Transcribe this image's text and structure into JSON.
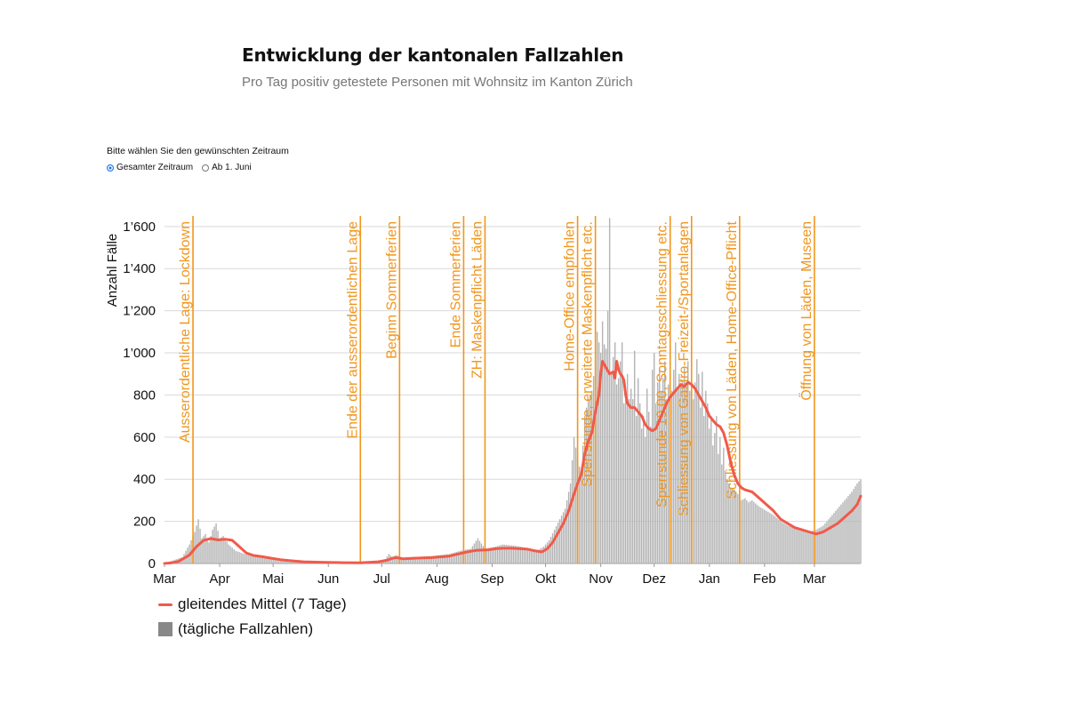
{
  "header": {
    "title": "Entwicklung der kantonalen Fallzahlen",
    "subtitle": "Pro Tag positiv getestete Personen mit Wohnsitz im Kanton Zürich"
  },
  "period_selector": {
    "label": "Bitte wählen Sie den gewünschten Zeitraum",
    "options": [
      {
        "label": "Gesamter Zeitraum",
        "selected": true
      },
      {
        "label": "Ab 1. Juni",
        "selected": false
      }
    ]
  },
  "legend": {
    "line_label": "gleitendes Mittel (7 Tage)",
    "bar_label": "(tägliche Fallzahlen)"
  },
  "colors": {
    "line": "#f05a4a",
    "bars": "#b3b3b3",
    "events": "#f0961e",
    "grid": "#d9d9d9"
  },
  "chart_data": {
    "type": "bar",
    "title": "Entwicklung der kantonalen Fallzahlen",
    "xlabel": "",
    "ylabel": "Anzahl Fälle",
    "ylim": [
      0,
      1650
    ],
    "yticks": [
      0,
      200,
      400,
      600,
      800,
      1000,
      1200,
      1400,
      1600
    ],
    "ytick_labels": [
      "0",
      "200",
      "400",
      "600",
      "800",
      "1’000",
      "1’200",
      "1’400",
      "1’600"
    ],
    "xlim": [
      0,
      391
    ],
    "xticks": [
      {
        "day": 0,
        "label": "Mar"
      },
      {
        "day": 31,
        "label": "Apr"
      },
      {
        "day": 61,
        "label": "Mai"
      },
      {
        "day": 92,
        "label": "Jun"
      },
      {
        "day": 122,
        "label": "Jul"
      },
      {
        "day": 153,
        "label": "Aug"
      },
      {
        "day": 184,
        "label": "Sep"
      },
      {
        "day": 214,
        "label": "Okt"
      },
      {
        "day": 245,
        "label": "Nov"
      },
      {
        "day": 275,
        "label": "Dez"
      },
      {
        "day": 306,
        "label": "Jan"
      },
      {
        "day": 337,
        "label": "Feb"
      },
      {
        "day": 365,
        "label": "Mar"
      }
    ],
    "start_date": "2020-03-01",
    "series": [
      {
        "name": "gleitendes Mittel (7 Tage)",
        "kind": "line",
        "points": [
          [
            0,
            0
          ],
          [
            4,
            3
          ],
          [
            8,
            10
          ],
          [
            12,
            30
          ],
          [
            14,
            40
          ],
          [
            18,
            80
          ],
          [
            22,
            110
          ],
          [
            26,
            118
          ],
          [
            30,
            112
          ],
          [
            34,
            115
          ],
          [
            38,
            110
          ],
          [
            42,
            80
          ],
          [
            46,
            50
          ],
          [
            50,
            38
          ],
          [
            55,
            32
          ],
          [
            60,
            25
          ],
          [
            65,
            18
          ],
          [
            70,
            14
          ],
          [
            78,
            8
          ],
          [
            90,
            5
          ],
          [
            100,
            4
          ],
          [
            110,
            3
          ],
          [
            115,
            5
          ],
          [
            120,
            8
          ],
          [
            125,
            15
          ],
          [
            128,
            25
          ],
          [
            130,
            28
          ],
          [
            134,
            22
          ],
          [
            140,
            25
          ],
          [
            150,
            28
          ],
          [
            160,
            35
          ],
          [
            165,
            45
          ],
          [
            170,
            55
          ],
          [
            175,
            62
          ],
          [
            182,
            65
          ],
          [
            186,
            70
          ],
          [
            190,
            72
          ],
          [
            195,
            72
          ],
          [
            200,
            70
          ],
          [
            204,
            68
          ],
          [
            208,
            60
          ],
          [
            212,
            55
          ],
          [
            215,
            70
          ],
          [
            218,
            100
          ],
          [
            221,
            145
          ],
          [
            224,
            190
          ],
          [
            227,
            250
          ],
          [
            230,
            330
          ],
          [
            232,
            380
          ],
          [
            234,
            420
          ],
          [
            236,
            520
          ],
          [
            238,
            580
          ],
          [
            240,
            620
          ],
          [
            242,
            720
          ],
          [
            244,
            800
          ],
          [
            245,
            900
          ],
          [
            246,
            960
          ],
          [
            248,
            930
          ],
          [
            250,
            900
          ],
          [
            252,
            910
          ],
          [
            253,
            880
          ],
          [
            254,
            960
          ],
          [
            255,
            920
          ],
          [
            256,
            900
          ],
          [
            257,
            890
          ],
          [
            258,
            870
          ],
          [
            259,
            800
          ],
          [
            260,
            760
          ],
          [
            262,
            740
          ],
          [
            264,
            740
          ],
          [
            266,
            720
          ],
          [
            268,
            700
          ],
          [
            270,
            660
          ],
          [
            272,
            640
          ],
          [
            274,
            630
          ],
          [
            276,
            640
          ],
          [
            278,
            680
          ],
          [
            280,
            720
          ],
          [
            282,
            760
          ],
          [
            284,
            790
          ],
          [
            286,
            810
          ],
          [
            288,
            830
          ],
          [
            290,
            850
          ],
          [
            292,
            840
          ],
          [
            294,
            860
          ],
          [
            296,
            850
          ],
          [
            298,
            830
          ],
          [
            300,
            800
          ],
          [
            302,
            770
          ],
          [
            304,
            740
          ],
          [
            306,
            700
          ],
          [
            308,
            680
          ],
          [
            310,
            660
          ],
          [
            312,
            650
          ],
          [
            314,
            620
          ],
          [
            316,
            560
          ],
          [
            318,
            480
          ],
          [
            320,
            420
          ],
          [
            322,
            380
          ],
          [
            324,
            360
          ],
          [
            326,
            350
          ],
          [
            330,
            340
          ],
          [
            334,
            310
          ],
          [
            338,
            280
          ],
          [
            342,
            250
          ],
          [
            346,
            210
          ],
          [
            350,
            190
          ],
          [
            354,
            170
          ],
          [
            358,
            160
          ],
          [
            362,
            150
          ],
          [
            366,
            140
          ],
          [
            370,
            150
          ],
          [
            374,
            170
          ],
          [
            378,
            190
          ],
          [
            382,
            220
          ],
          [
            386,
            250
          ],
          [
            389,
            280
          ],
          [
            391,
            320
          ]
        ]
      },
      {
        "name": "(tägliche Fallzahlen)",
        "kind": "bars",
        "note": "daily values, estimated",
        "points": [
          [
            0,
            0
          ],
          [
            10,
            30
          ],
          [
            14,
            90
          ],
          [
            17,
            150
          ],
          [
            19,
            210
          ],
          [
            21,
            120
          ],
          [
            23,
            140
          ],
          [
            25,
            100
          ],
          [
            27,
            160
          ],
          [
            29,
            190
          ],
          [
            31,
            120
          ],
          [
            33,
            130
          ],
          [
            36,
            90
          ],
          [
            40,
            60
          ],
          [
            45,
            45
          ],
          [
            50,
            35
          ],
          [
            55,
            28
          ],
          [
            60,
            22
          ],
          [
            65,
            16
          ],
          [
            70,
            12
          ],
          [
            80,
            8
          ],
          [
            90,
            5
          ],
          [
            100,
            4
          ],
          [
            110,
            4
          ],
          [
            118,
            8
          ],
          [
            124,
            20
          ],
          [
            126,
            45
          ],
          [
            128,
            30
          ],
          [
            130,
            40
          ],
          [
            135,
            25
          ],
          [
            140,
            30
          ],
          [
            150,
            35
          ],
          [
            160,
            45
          ],
          [
            166,
            60
          ],
          [
            172,
            70
          ],
          [
            176,
            120
          ],
          [
            180,
            70
          ],
          [
            186,
            80
          ],
          [
            190,
            90
          ],
          [
            196,
            85
          ],
          [
            200,
            80
          ],
          [
            205,
            70
          ],
          [
            210,
            65
          ],
          [
            213,
            80
          ],
          [
            216,
            110
          ],
          [
            219,
            160
          ],
          [
            222,
            210
          ],
          [
            225,
            260
          ],
          [
            228,
            380
          ],
          [
            230,
            600
          ],
          [
            232,
            500
          ],
          [
            234,
            420
          ],
          [
            236,
            700
          ],
          [
            238,
            780
          ],
          [
            240,
            820
          ],
          [
            242,
            960
          ],
          [
            243,
            1100
          ],
          [
            245,
            1000
          ],
          [
            246,
            1150
          ],
          [
            247,
            1040
          ],
          [
            248,
            1020
          ],
          [
            249,
            1200
          ],
          [
            250,
            1640
          ],
          [
            251,
            900
          ],
          [
            252,
            980
          ],
          [
            253,
            1050
          ],
          [
            254,
            850
          ],
          [
            255,
            880
          ],
          [
            256,
            960
          ],
          [
            257,
            1050
          ],
          [
            258,
            760
          ],
          [
            259,
            820
          ],
          [
            260,
            900
          ],
          [
            261,
            780
          ],
          [
            262,
            830
          ],
          [
            263,
            780
          ],
          [
            264,
            1010
          ],
          [
            265,
            700
          ],
          [
            266,
            880
          ],
          [
            267,
            760
          ],
          [
            268,
            640
          ],
          [
            269,
            700
          ],
          [
            270,
            600
          ],
          [
            271,
            830
          ],
          [
            272,
            720
          ],
          [
            273,
            650
          ],
          [
            274,
            920
          ],
          [
            275,
            1000
          ],
          [
            276,
            760
          ],
          [
            277,
            860
          ],
          [
            278,
            930
          ],
          [
            279,
            820
          ],
          [
            280,
            880
          ],
          [
            281,
            960
          ],
          [
            282,
            780
          ],
          [
            283,
            850
          ],
          [
            284,
            900
          ],
          [
            285,
            820
          ],
          [
            286,
            920
          ],
          [
            287,
            1050
          ],
          [
            288,
            830
          ],
          [
            289,
            900
          ],
          [
            290,
            850
          ],
          [
            291,
            870
          ],
          [
            292,
            930
          ],
          [
            293,
            860
          ],
          [
            294,
            960
          ],
          [
            295,
            820
          ],
          [
            296,
            870
          ],
          [
            297,
            780
          ],
          [
            298,
            860
          ],
          [
            299,
            970
          ],
          [
            300,
            900
          ],
          [
            301,
            740
          ],
          [
            302,
            910
          ],
          [
            303,
            700
          ],
          [
            304,
            820
          ],
          [
            305,
            760
          ],
          [
            306,
            640
          ],
          [
            307,
            700
          ],
          [
            308,
            560
          ],
          [
            309,
            620
          ],
          [
            310,
            700
          ],
          [
            311,
            520
          ],
          [
            312,
            600
          ],
          [
            313,
            470
          ],
          [
            314,
            550
          ],
          [
            315,
            440
          ],
          [
            316,
            400
          ],
          [
            318,
            360
          ],
          [
            320,
            350
          ],
          [
            322,
            330
          ],
          [
            324,
            300
          ],
          [
            326,
            310
          ],
          [
            328,
            290
          ],
          [
            330,
            300
          ],
          [
            334,
            270
          ],
          [
            338,
            250
          ],
          [
            342,
            230
          ],
          [
            346,
            200
          ],
          [
            350,
            180
          ],
          [
            354,
            170
          ],
          [
            358,
            160
          ],
          [
            362,
            150
          ],
          [
            366,
            160
          ],
          [
            370,
            180
          ],
          [
            374,
            220
          ],
          [
            378,
            260
          ],
          [
            382,
            300
          ],
          [
            386,
            340
          ],
          [
            389,
            380
          ],
          [
            391,
            400
          ]
        ]
      }
    ],
    "events": [
      {
        "day": 16,
        "label": "Ausserordentliche Lage: Lockdown"
      },
      {
        "day": 110,
        "label": "Ende der ausserordentlichen Lage"
      },
      {
        "day": 132,
        "label": "Beginn Sommerferien"
      },
      {
        "day": 168,
        "label": "Ende Sommerferien"
      },
      {
        "day": 180,
        "label": "ZH: Maskenpflicht Läden"
      },
      {
        "day": 232,
        "label": "Home-Office empfohlen"
      },
      {
        "day": 242,
        "label": "Sperrstunde, erweiterte Maskenpflicht etc."
      },
      {
        "day": 284,
        "label": "Sperrstunde 19.00, Sonntagsschliessung etc."
      },
      {
        "day": 296,
        "label": "Schliessung von Gastro-Freizeit-/Sportanlagen"
      },
      {
        "day": 323,
        "label": "Schliessung von Läden, Home-Office-Pflicht"
      },
      {
        "day": 365,
        "label": "Öffnung von Läden, Museen"
      }
    ]
  }
}
